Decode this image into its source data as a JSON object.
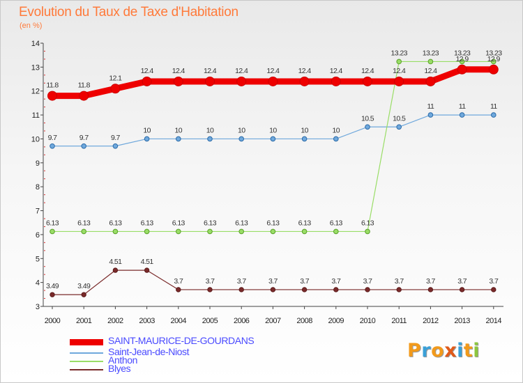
{
  "title": "Evolution du Taux de Taxe d'Habitation",
  "subtitle": "(en %)",
  "logo": {
    "text": "Proxiti",
    "colors": [
      "#f29a1b",
      "#3aa0d8",
      "#f29a1b",
      "#e05a1a",
      "#3aa0d8",
      "#f29a1b",
      "#8cc63f"
    ]
  },
  "chart_data": {
    "type": "line",
    "x": [
      "2000",
      "2001",
      "2002",
      "2003",
      "2004",
      "2005",
      "2006",
      "2007",
      "2008",
      "2009",
      "2010",
      "2011",
      "2012",
      "2013",
      "2014"
    ],
    "ylim": [
      3,
      14
    ],
    "yticks": [
      "3",
      "4",
      "5",
      "6",
      "7",
      "8",
      "9",
      "10",
      "11",
      "12",
      "13",
      "14"
    ],
    "grid": false,
    "legend_position": "bottom-left",
    "series": [
      {
        "name": "SAINT-MAURICE-DE-GOURDANS",
        "color": "#ee0000",
        "values": [
          11.8,
          11.8,
          12.1,
          12.4,
          12.4,
          12.4,
          12.4,
          12.4,
          12.4,
          12.4,
          12.4,
          12.4,
          12.4,
          12.9,
          12.9
        ],
        "labels": [
          "11.8",
          "11.8",
          "12.1",
          "12.4",
          "12.4",
          "12.4",
          "12.4",
          "12.4",
          "12.4",
          "12.4",
          "12.4",
          "12.4",
          "12.4",
          "12.9",
          "12.9"
        ]
      },
      {
        "name": "Saint-Jean-de-Niost",
        "color": "#6fa8dc",
        "values": [
          9.7,
          9.7,
          9.7,
          10,
          10,
          10,
          10,
          10,
          10,
          10,
          10.5,
          10.5,
          11,
          11,
          11
        ],
        "labels": [
          "9.7",
          "9.7",
          "9.7",
          "10",
          "10",
          "10",
          "10",
          "10",
          "10",
          "10",
          "10.5",
          "10.5",
          "11",
          "11",
          "11"
        ]
      },
      {
        "name": "Anthon",
        "color": "#99dd66",
        "values": [
          6.13,
          6.13,
          6.13,
          6.13,
          6.13,
          6.13,
          6.13,
          6.13,
          6.13,
          6.13,
          6.13,
          13.23,
          13.23,
          13.23,
          13.23
        ],
        "labels": [
          "6.13",
          "6.13",
          "6.13",
          "6.13",
          "6.13",
          "6.13",
          "6.13",
          "6.13",
          "6.13",
          "6.13",
          "6.13",
          "13.23",
          "13.23",
          "13.23",
          "13.23"
        ]
      },
      {
        "name": "Blyes",
        "color": "#7a2a2a",
        "values": [
          3.49,
          3.49,
          4.51,
          4.51,
          3.7,
          3.7,
          3.7,
          3.7,
          3.7,
          3.7,
          3.7,
          3.7,
          3.7,
          3.7,
          3.7
        ],
        "labels": [
          "3.49",
          "3.49",
          "4.51",
          "4.51",
          "3.7",
          "3.7",
          "3.7",
          "3.7",
          "3.7",
          "3.7",
          "3.7",
          "3.7",
          "3.7",
          "3.7",
          "3.7"
        ]
      }
    ]
  }
}
